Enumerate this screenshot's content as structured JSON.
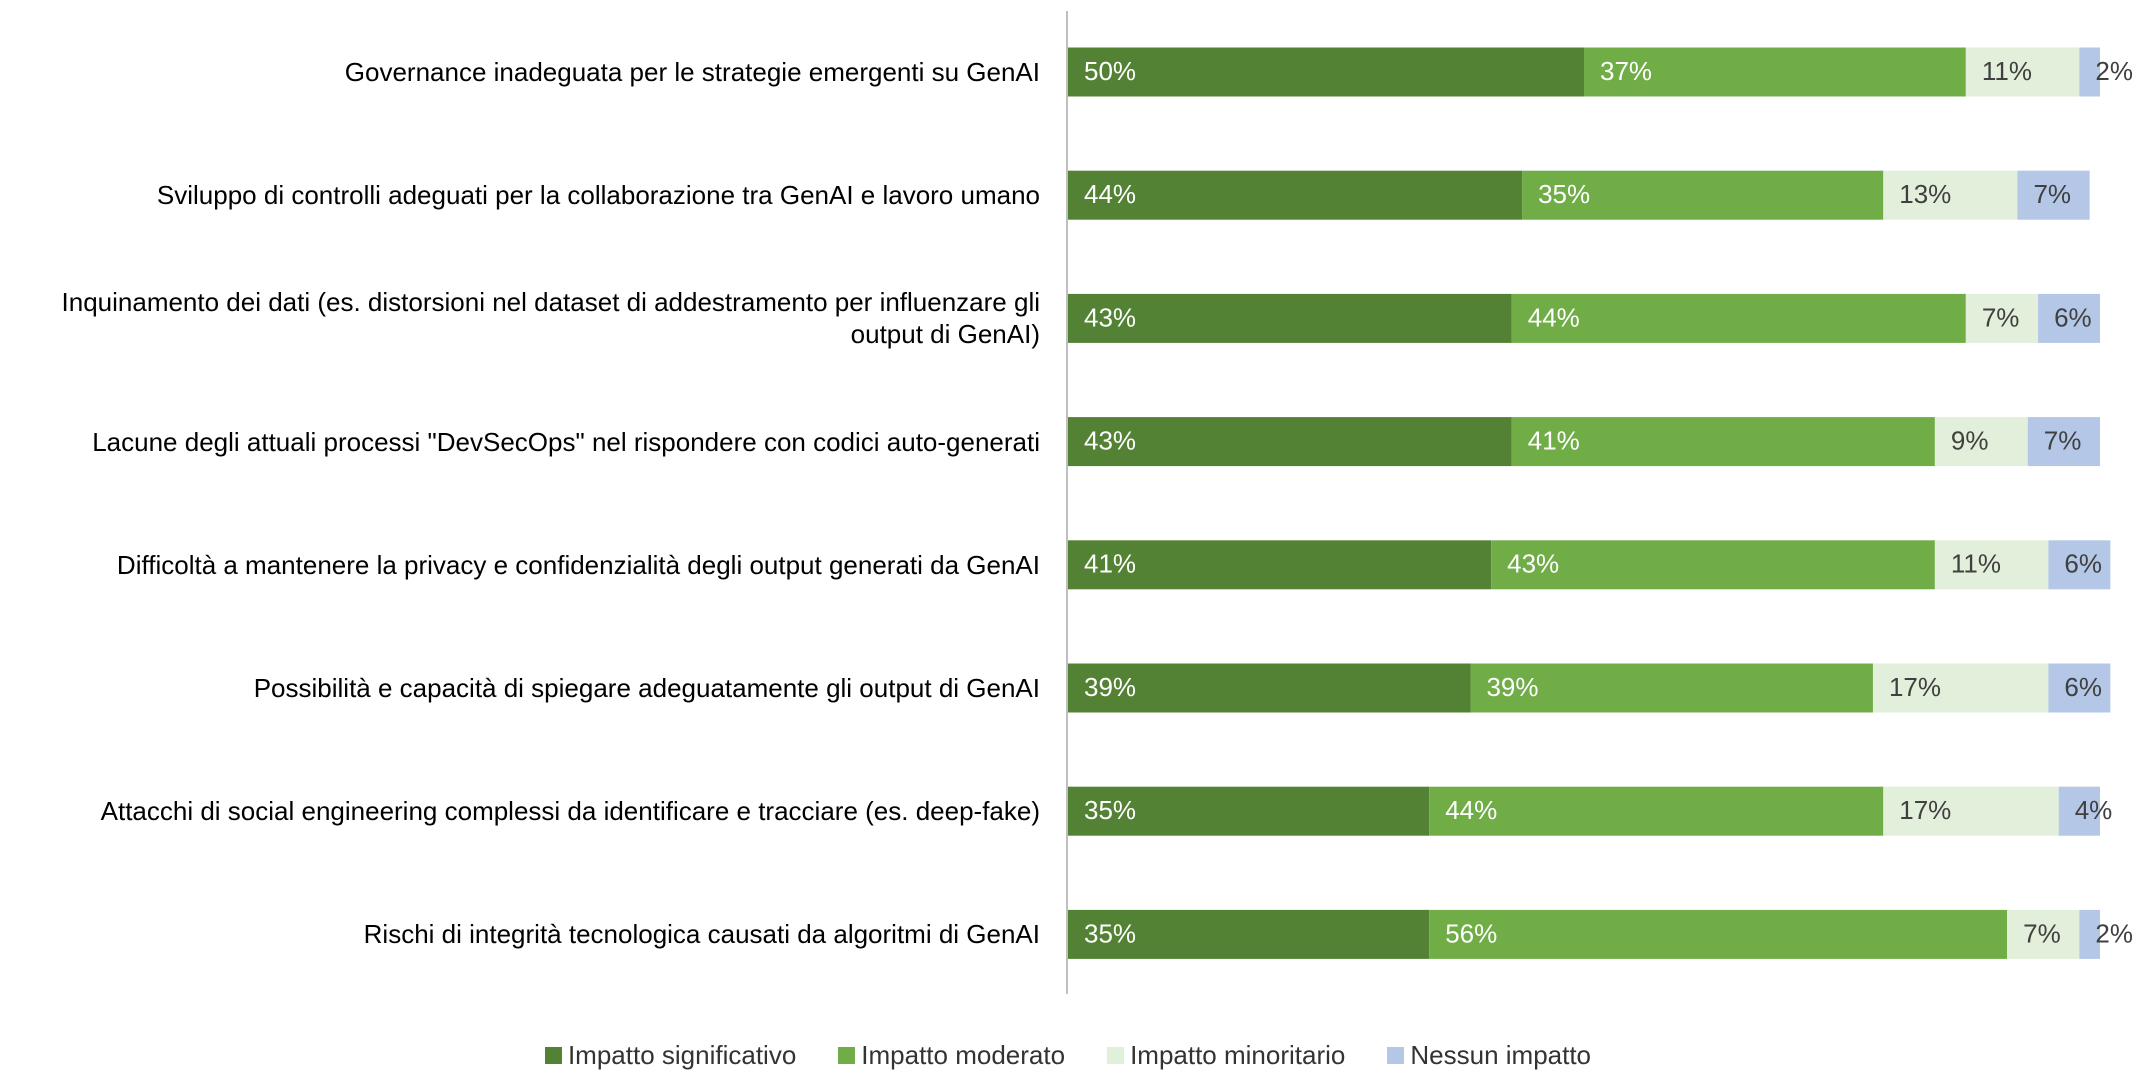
{
  "chart_data": {
    "type": "stacked_barh",
    "categories": [
      "Governance inadeguata per le strategie emergenti su GenAI",
      "Sviluppo di controlli adeguati per la collaborazione tra GenAI e lavoro umano",
      "Inquinamento dei dati (es. distorsioni nel dataset di addestramento per influenzare gli output di GenAI)",
      "Lacune degli attuali processi \"DevSecOps\" nel rispondere con codici auto-generati",
      "Difficoltà a mantenere la privacy e confidenzialità degli output generati da GenAI",
      "Possibilità e capacità di spiegare adeguatamente gli output di GenAI",
      "Attacchi di social engineering complessi da identificare e tracciare (es. deep-fake)",
      "Rischi di integrità tecnologica causati da algoritmi di GenAI"
    ],
    "series": [
      {
        "name": "Impatto significativo",
        "color": "#548235",
        "values": [
          50,
          44,
          43,
          43,
          41,
          39,
          35,
          35
        ],
        "value_labels": [
          "50%",
          "44%",
          "43%",
          "43%",
          "41%",
          "39%",
          "35%",
          "35%"
        ]
      },
      {
        "name": "Impatto moderato",
        "color": "#70ad47",
        "values": [
          37,
          35,
          44,
          41,
          43,
          39,
          44,
          56
        ],
        "value_labels": [
          "37%",
          "35%",
          "44%",
          "41%",
          "43%",
          "39%",
          "44%",
          "56%"
        ]
      },
      {
        "name": "Impatto minoritario",
        "color": "#e2efda",
        "values": [
          11,
          13,
          7,
          9,
          11,
          17,
          17,
          7
        ],
        "value_labels": [
          "11%",
          "13%",
          "7%",
          "9%",
          "11%",
          "17%",
          "17%",
          "7%"
        ]
      },
      {
        "name": "Nessun impatto",
        "color": "#b4c7e7",
        "values": [
          2,
          7,
          6,
          7,
          6,
          6,
          4,
          2
        ],
        "value_labels": [
          "2%",
          "7%",
          "6%",
          "7%",
          "6%",
          "6%",
          "4%",
          "2%"
        ]
      }
    ],
    "legend": "bottom"
  }
}
